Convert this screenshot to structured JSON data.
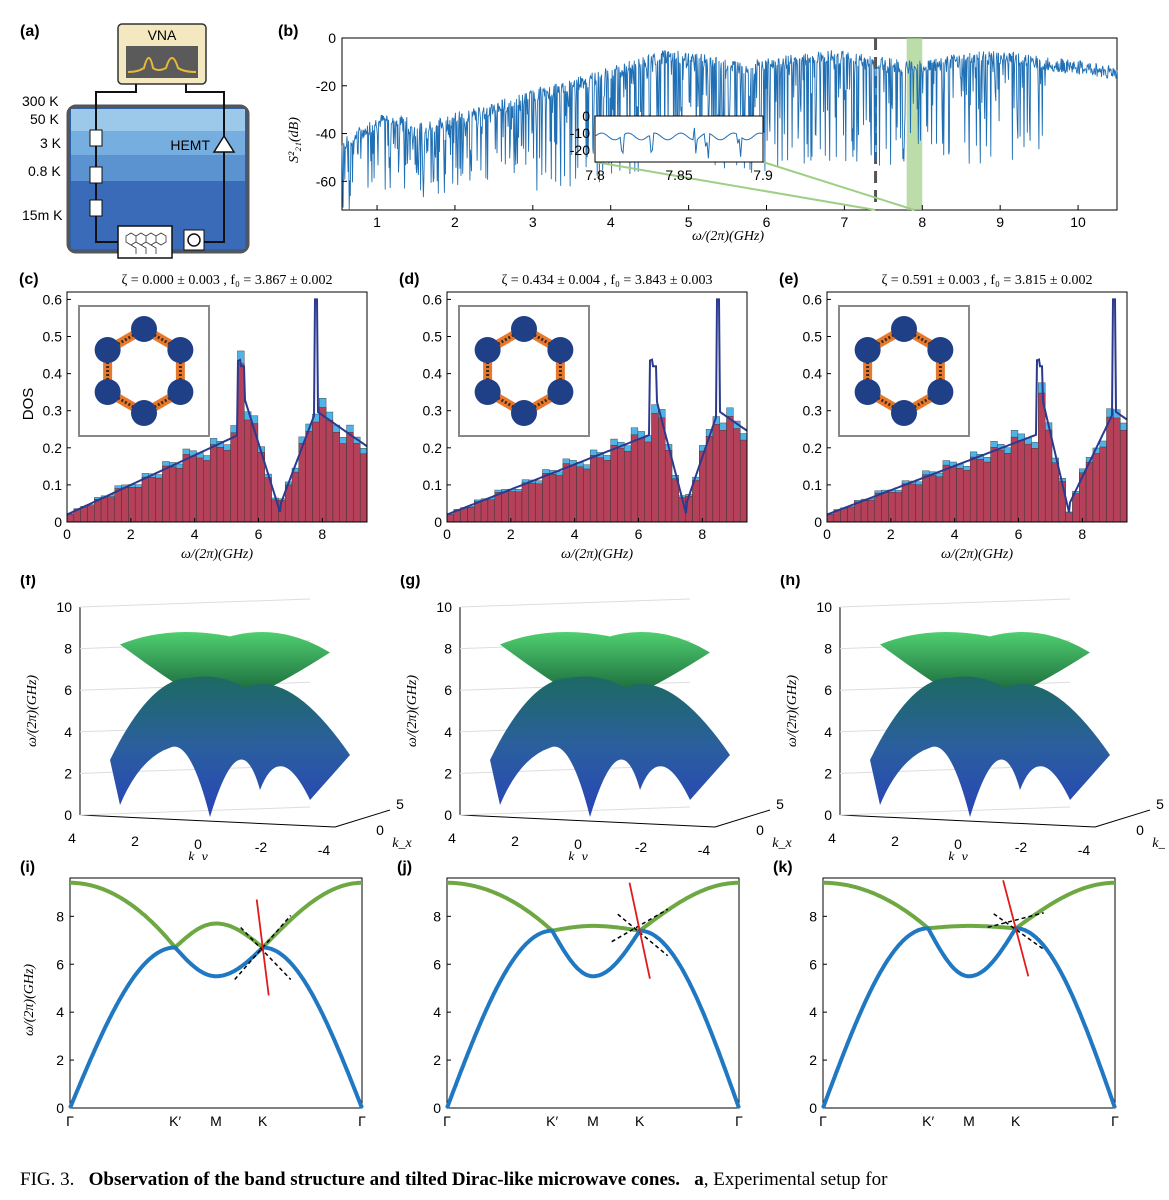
{
  "figure": {
    "caption_prefix": "FIG. 3.",
    "caption_bold": "Observation of the band structure and tilted Dirac-like microwave cones.",
    "caption_rest_label": "a",
    "caption_rest": ", Experimental setup for"
  },
  "panel_a": {
    "label": "(a)",
    "vna": "VNA",
    "hemt": "HEMT",
    "temps": [
      "300 K",
      "50 K",
      "3 K",
      "0.8 K",
      "15m K"
    ]
  },
  "panel_b": {
    "label": "(b)",
    "ylabel": "S²₂₁(dB)",
    "xlabel": "ω/(2π)(GHz)",
    "yticks": [
      "0",
      "-20",
      "-40",
      "-60"
    ],
    "xticks": [
      "1",
      "2",
      "3",
      "4",
      "5",
      "6",
      "7",
      "8",
      "9",
      "10"
    ],
    "inset_yticks": [
      "0",
      "-10",
      "-20"
    ],
    "inset_xticks": [
      "7.8",
      "7.85",
      "7.9"
    ]
  },
  "dos_panels": [
    {
      "label": "(c)",
      "title": "ζ = 0.000 ± 0.003 , f₀ = 3.867 ± 0.002"
    },
    {
      "label": "(d)",
      "title": "ζ = 0.434 ± 0.004 , f₀ = 3.843 ± 0.003"
    },
    {
      "label": "(e)",
      "title": "ζ = 0.591 ± 0.003 , f₀ = 3.815 ± 0.002"
    }
  ],
  "dos_common": {
    "ylabel": "DOS",
    "xlabel": "ω/(2π)(GHz)",
    "yticks": [
      "0",
      "0.1",
      "0.2",
      "0.3",
      "0.4",
      "0.5",
      "0.6"
    ],
    "xticks": [
      "0",
      "2",
      "4",
      "6",
      "8"
    ]
  },
  "surface_panels": [
    {
      "label": "(f)"
    },
    {
      "label": "(g)"
    },
    {
      "label": "(h)"
    }
  ],
  "surface_common": {
    "zlabel": "ω/(2π)(GHz)",
    "zticks": [
      "0",
      "2",
      "4",
      "6",
      "8",
      "10"
    ],
    "kyticks": [
      "4",
      "2",
      "0",
      "-2",
      "-4"
    ],
    "kxticks": [
      "0",
      "5"
    ],
    "kylabel": "k_y",
    "kxlabel": "k_x"
  },
  "band_panels": [
    {
      "label": "(i)"
    },
    {
      "label": "(j)"
    },
    {
      "label": "(k)"
    }
  ],
  "band_common": {
    "ylabel": "ω/(2π)(GHz)",
    "yticks": [
      "0",
      "2",
      "4",
      "6",
      "8"
    ],
    "xticks": [
      "Γ",
      "K′",
      "M",
      "K",
      "Γ"
    ]
  },
  "colors": {
    "blue_line": "#1f6fb5",
    "green_band": "#6ea843",
    "blue_band": "#1f78c1",
    "red_line": "#e01b1b",
    "hist_red": "#b5405a",
    "hist_blue": "#4fb3e6",
    "fit_line": "#2b3a8f",
    "cryostat_dark": "#2f5fa8",
    "cryostat_light": "#9cc9ea"
  }
}
